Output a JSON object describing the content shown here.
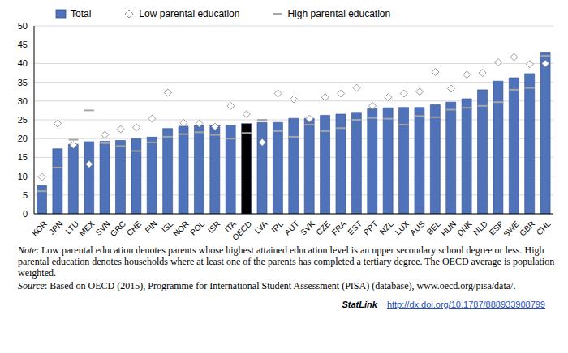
{
  "chart_data": {
    "type": "bar",
    "legend": "top",
    "grid": true,
    "categories": [
      "KOR",
      "JPN",
      "LTU",
      "MEX",
      "SVN",
      "GRC",
      "CHE",
      "FIN",
      "ISL",
      "NOR",
      "POL",
      "ISR",
      "ITA",
      "OECD",
      "LVA",
      "IRL",
      "AUT",
      "SVK",
      "CZE",
      "FRA",
      "EST",
      "PRT",
      "NZL",
      "LUX",
      "AUS",
      "BEL",
      "HUN",
      "DNK",
      "NLD",
      "ESP",
      "SWE",
      "GBR",
      "CHL"
    ],
    "series": [
      {
        "name": "Total",
        "type": "bar",
        "color": "#4f72b8",
        "colors": [
          "#4f72b8",
          "#4f72b8",
          "#4f72b8",
          "#4f72b8",
          "#4f72b8",
          "#4f72b8",
          "#4f72b8",
          "#4f72b8",
          "#4f72b8",
          "#4f72b8",
          "#4f72b8",
          "#4f72b8",
          "#4f72b8",
          "#000000",
          "#4f72b8",
          "#4f72b8",
          "#4f72b8",
          "#4f72b8",
          "#4f72b8",
          "#4f72b8",
          "#4f72b8",
          "#4f72b8",
          "#4f72b8",
          "#4f72b8",
          "#4f72b8",
          "#4f72b8",
          "#4f72b8",
          "#4f72b8",
          "#4f72b8",
          "#4f72b8",
          "#4f72b8",
          "#4f72b8",
          "#4f72b8"
        ],
        "values": [
          7.5,
          17.3,
          18.5,
          19.2,
          19.3,
          19.5,
          20,
          20.4,
          22.7,
          23.3,
          23.5,
          23.5,
          23.6,
          24,
          24.3,
          24.3,
          25.4,
          25.4,
          26.2,
          26.5,
          27,
          27.9,
          28.2,
          28.3,
          28.3,
          29,
          29.7,
          30.6,
          33,
          35.3,
          36.2,
          37.3,
          43
        ]
      },
      {
        "name": "Low parental education",
        "type": "scatter",
        "marker": "diamond",
        "color": "#ffffff",
        "values": [
          9.8,
          24,
          18.3,
          13.2,
          21,
          22.5,
          23,
          25.3,
          32.2,
          24.2,
          24,
          23.2,
          28.7,
          26.5,
          19,
          32,
          30.5,
          25.3,
          31,
          32,
          33.5,
          28.7,
          31,
          32,
          32.5,
          37.7,
          33.3,
          37,
          37.5,
          40.3,
          41.7,
          39.8,
          40
        ]
      },
      {
        "name": "High parental education",
        "type": "scatter",
        "marker": "dash",
        "color": "#a6a6a6",
        "values": [
          6,
          12.3,
          19.7,
          27.5,
          18.8,
          18,
          16.7,
          19,
          20.5,
          21.2,
          21.7,
          21,
          20,
          21.5,
          25,
          22,
          20.5,
          23.7,
          22,
          22.8,
          25,
          25.5,
          25.3,
          23.7,
          26,
          25.7,
          27.7,
          28.2,
          28.7,
          29.7,
          33,
          33.5,
          42
        ]
      }
    ],
    "ylim": [
      0,
      50
    ],
    "yticks": [
      0,
      5,
      10,
      15,
      20,
      25,
      30,
      35,
      40,
      45,
      50
    ],
    "annotations": [
      "Note: Low parental education denotes parents whose highest attained education level is an upper secondary school degree or less. High parental education denotes households where at least one of the parents has completed a tertiary degree. The OECD average is population weighted.",
      "Source: Based on OECD (2015), Programme for International Student Assessment (PISA) (database), www.oecd.org/pisa/data/.",
      "StatLink http://dx.doi.org/10.1787/888933908799"
    ]
  }
}
